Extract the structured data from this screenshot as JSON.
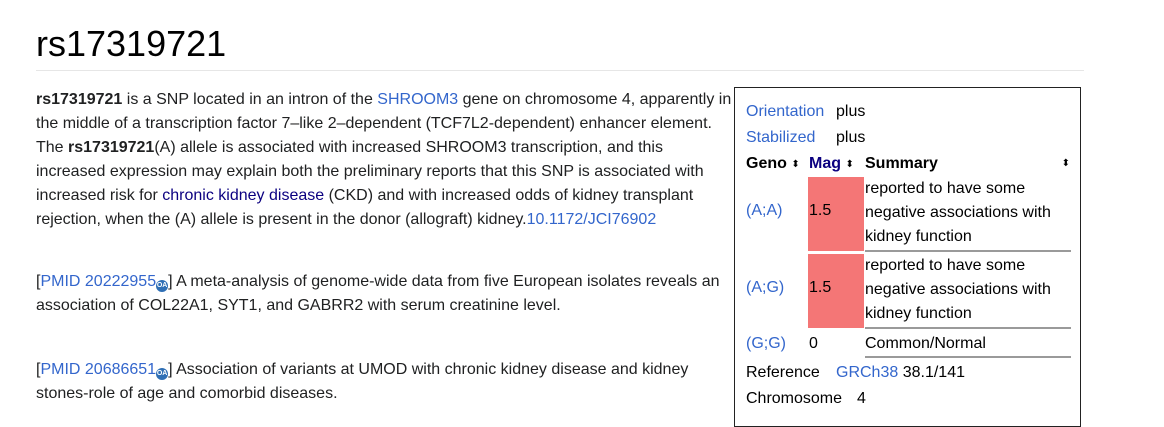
{
  "page": {
    "title": "rs17319721"
  },
  "article": {
    "p1": {
      "rs_bold": "rs17319721",
      "t1": " is a SNP located in an intron of the ",
      "gene_link": "SHROOM3",
      "t2": " gene on chromosome 4, apparently in the middle of a transcription factor 7–like 2–dependent (TCF7L2-dependent) enhancer element. The ",
      "rs_bold2": "rs17319721",
      "t3": "(A) allele is associated with increased SHROOM3 transcription, and this increased expression may explain both the preliminary reports that this SNP is associated with increased risk for ",
      "disease_link": "chronic kidney disease",
      "t4": " (CKD) and with increased odds of kidney transplant rejection, when the (A) allele is present in the donor (allograft) kidney.",
      "doi_link": "10.1172/JCI76902"
    },
    "p2": {
      "open": "[",
      "pmid_link": "PMID 20222955",
      "oa_icon": "OA",
      "close": "]",
      "text": " A meta-analysis of genome-wide data from five European isolates reveals an association of COL22A1, SYT1, and GABRR2 with serum creatinine level."
    },
    "p3": {
      "open": "[",
      "pmid_link": "PMID 20686651",
      "oa_icon": "OA",
      "close": "]",
      "text": " Association of variants at UMOD with chronic kidney disease and kidney stones-role of age and comorbid diseases."
    }
  },
  "infobox": {
    "orientation": {
      "label": "Orientation",
      "value": "plus"
    },
    "stabilized": {
      "label": "Stabilized",
      "value": "plus"
    },
    "columns": {
      "geno": "Geno",
      "mag": "Mag",
      "summary": "Summary",
      "sort_icon": "⬍"
    },
    "genotypes": [
      {
        "geno": "(A;A)",
        "mag": "1.5",
        "summary": "reported to have some negative associations with kidney function"
      },
      {
        "geno": "(A;G)",
        "mag": "1.5",
        "summary": "reported to have some negative associations with kidney function"
      },
      {
        "geno": "(G;G)",
        "mag": "0",
        "summary": "Common/Normal"
      }
    ],
    "reference": {
      "label": "Reference",
      "link": "GRCh38",
      "value": "38.1/141"
    },
    "chromosome": {
      "label": "Chromosome",
      "value": "4"
    },
    "colors": {
      "magnitude_red": "#f47676",
      "link": "#3366cc",
      "visited_link": "#0b0080"
    }
  }
}
